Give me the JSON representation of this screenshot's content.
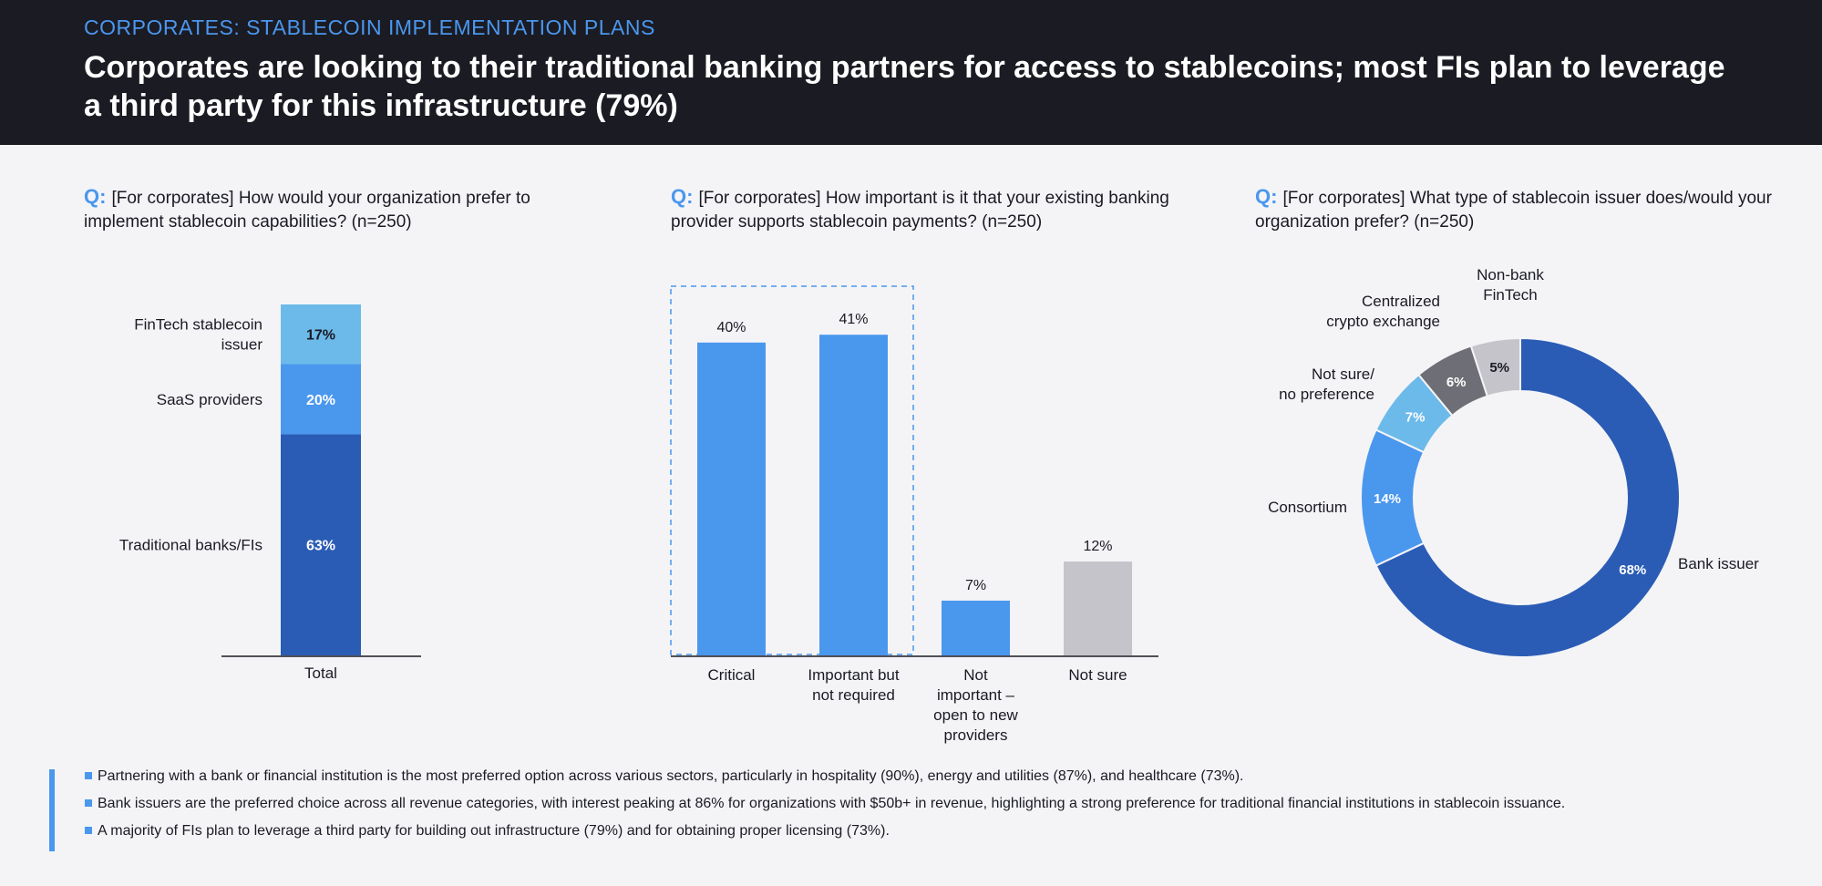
{
  "header": {
    "eyebrow": "CORPORATES: STABLECOIN IMPLEMENTATION PLANS",
    "headline": "Corporates are looking to their traditional banking partners for access to stablecoins; most FIs plan to leverage a third party for this infrastructure (79%)"
  },
  "questions": [
    {
      "q": "Q:",
      "text": "[For corporates] How would your organization prefer to implement stablecoin capabilities? (n=250)"
    },
    {
      "q": "Q:",
      "text": "[For corporates] How important is it that your existing banking provider supports stablecoin payments? (n=250)"
    },
    {
      "q": "Q:",
      "text": "[For corporates] What type of stablecoin issuer does/would your organization prefer? (n=250)"
    }
  ],
  "chart_data": [
    {
      "type": "bar",
      "stacked": true,
      "categories": [
        "Total"
      ],
      "series": [
        {
          "name": "Traditional banks/FIs",
          "values": [
            63
          ],
          "label": "63%",
          "color": "#2b5cb5"
        },
        {
          "name": "SaaS providers",
          "values": [
            20
          ],
          "label": "20%",
          "color": "#4a97ee"
        },
        {
          "name": "FinTech stablecoin issuer",
          "values": [
            17
          ],
          "label": "17%",
          "color": "#6cbaea"
        }
      ],
      "ylim": [
        0,
        100
      ]
    },
    {
      "type": "bar",
      "categories": [
        "Critical",
        "Important but not required",
        "Not important – open to new providers",
        "Not sure"
      ],
      "category_lines": [
        [
          "Critical"
        ],
        [
          "Important but",
          "not required"
        ],
        [
          "Not",
          "important –",
          "open to new",
          "providers"
        ],
        [
          "Not sure"
        ]
      ],
      "values": [
        40,
        41,
        7,
        12
      ],
      "labels": [
        "40%",
        "41%",
        "7%",
        "12%"
      ],
      "colors": [
        "#4a97ee",
        "#4a97ee",
        "#4a97ee",
        "#c4c4ca"
      ],
      "highlight": "first two bars enclosed by dashed blue box",
      "ylim": [
        0,
        45
      ]
    },
    {
      "type": "pie",
      "donut": true,
      "slices": [
        {
          "name": "Bank issuer",
          "name_lines": [
            "Bank issuer"
          ],
          "value": 68,
          "label": "68%",
          "color": "#2b5cb5"
        },
        {
          "name": "Consortium",
          "name_lines": [
            "Consortium"
          ],
          "value": 14,
          "label": "14%",
          "color": "#4a97ee"
        },
        {
          "name": "Not sure/ no preference",
          "name_lines": [
            "Not sure/",
            "no preference"
          ],
          "value": 7,
          "label": "7%",
          "color": "#6cbaea"
        },
        {
          "name": "Centralized crypto exchange",
          "name_lines": [
            "Centralized",
            "crypto exchange"
          ],
          "value": 6,
          "label": "6%",
          "color": "#6e6e76"
        },
        {
          "name": "Non-bank FinTech",
          "name_lines": [
            "Non-bank",
            "FinTech"
          ],
          "value": 5,
          "label": "5%",
          "color": "#c4c4ca"
        }
      ]
    }
  ],
  "notes": [
    "Partnering with a bank or financial institution is the most preferred option across various sectors, particularly in hospitality (90%), energy and utilities (87%), and healthcare (73%).",
    "Bank issuers are the preferred choice across all revenue categories, with interest peaking at 86% for organizations with $50b+ in revenue, highlighting a strong preference for traditional financial institutions in stablecoin issuance.",
    "A majority of FIs plan to leverage a third party for building out infrastructure (79%) and for obtaining proper licensing (73%)."
  ]
}
